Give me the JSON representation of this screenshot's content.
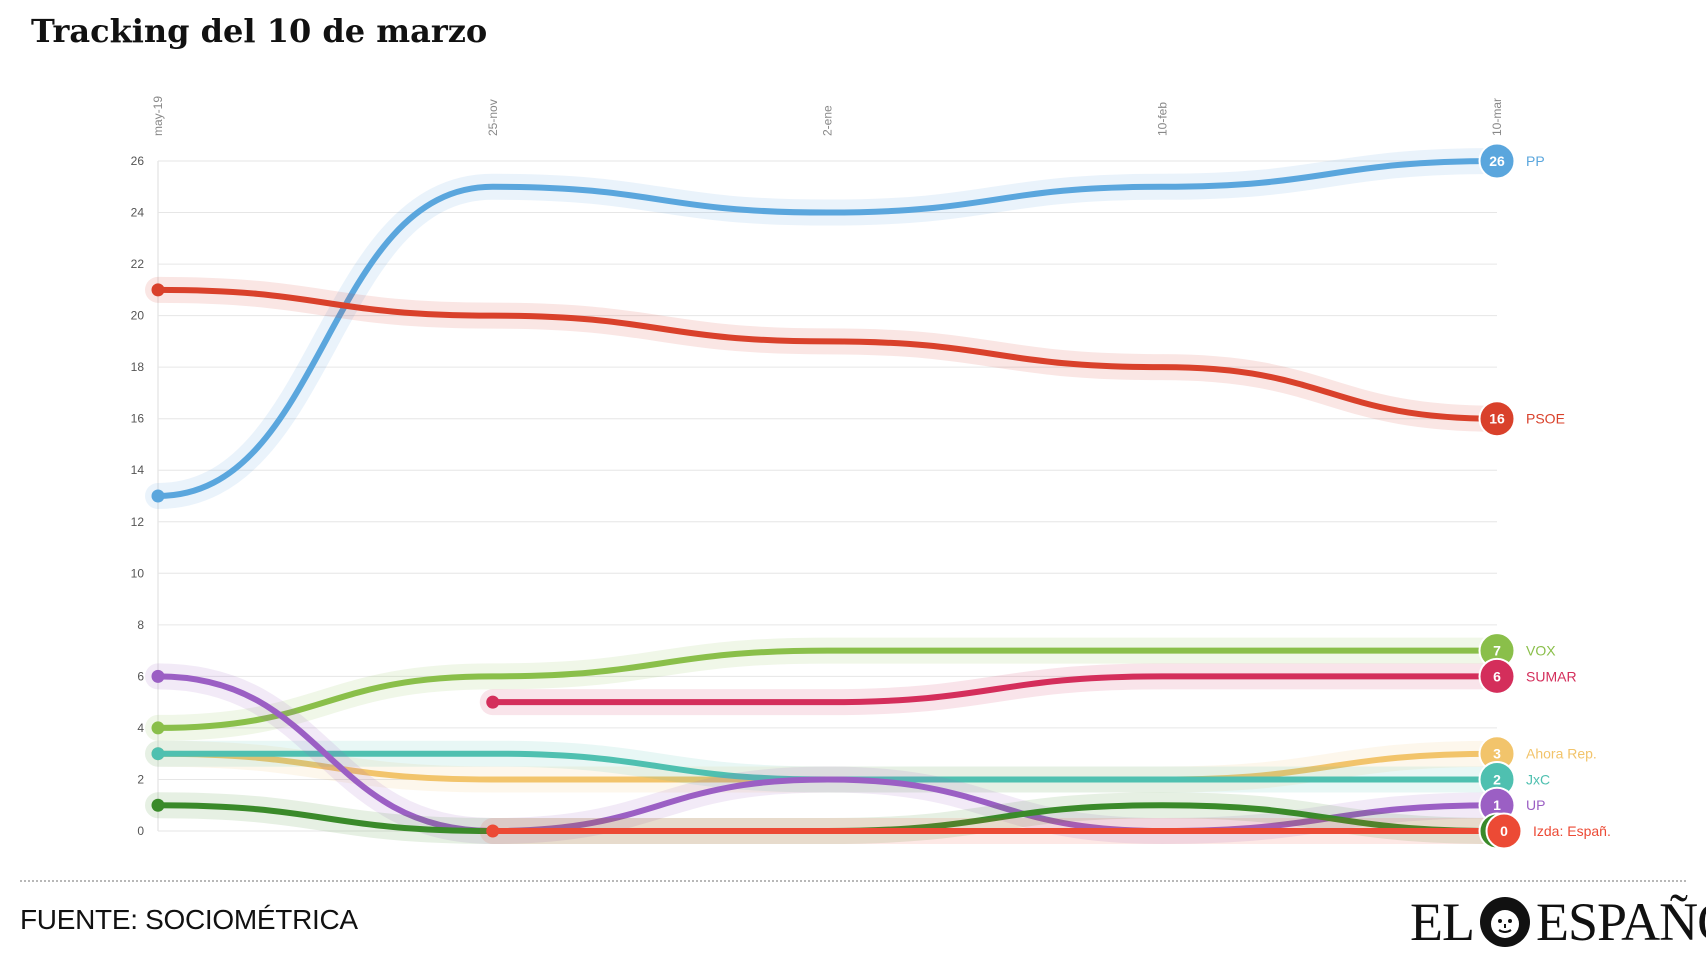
{
  "title": "Tracking del 10 de marzo",
  "source": "FUENTE: SOCIOMÉTRICA",
  "logo": {
    "left": "EL",
    "right": "ESPAÑOL"
  },
  "chart_data": {
    "type": "line",
    "title": "",
    "xlabel": "",
    "ylabel": "",
    "ylim": [
      0,
      26
    ],
    "yticks": [
      0,
      2,
      4,
      6,
      8,
      10,
      12,
      14,
      16,
      18,
      20,
      22,
      24,
      26
    ],
    "grid": true,
    "x": [
      "may-19",
      "25-nov",
      "2-ene",
      "10-feb",
      "10-mar"
    ],
    "series": [
      {
        "name": "PP",
        "color": "#5aa6dd",
        "values": [
          13,
          25,
          24,
          25,
          26
        ],
        "end_label": "26"
      },
      {
        "name": "PSOE",
        "color": "#d9412b",
        "values": [
          21,
          20,
          19,
          18,
          16
        ],
        "end_label": "16"
      },
      {
        "name": "VOX",
        "color": "#8abf4a",
        "values": [
          4,
          6,
          7,
          7,
          7
        ],
        "end_label": "7"
      },
      {
        "name": "SUMAR",
        "color": "#d42e5b",
        "values": [
          null,
          5,
          5,
          6,
          6
        ],
        "end_label": "6"
      },
      {
        "name": "Ahora Rep.",
        "color": "#f2c46b",
        "values": [
          3,
          2,
          2,
          2,
          3
        ],
        "end_label": "3"
      },
      {
        "name": "JxC",
        "color": "#4fc0b0",
        "values": [
          3,
          3,
          2,
          2,
          2
        ],
        "end_label": "2"
      },
      {
        "name": "UP",
        "color": "#9b5fc4",
        "values": [
          6,
          0,
          2,
          0,
          1
        ],
        "end_label": "1"
      },
      {
        "name": "",
        "color": "#3a8a2a",
        "values": [
          1,
          0,
          0,
          1,
          0
        ],
        "end_label": "0"
      },
      {
        "name": "Izda: Españ.",
        "color": "#ec4a35",
        "values": [
          null,
          0,
          0,
          0,
          0
        ],
        "end_label": "0"
      }
    ]
  }
}
